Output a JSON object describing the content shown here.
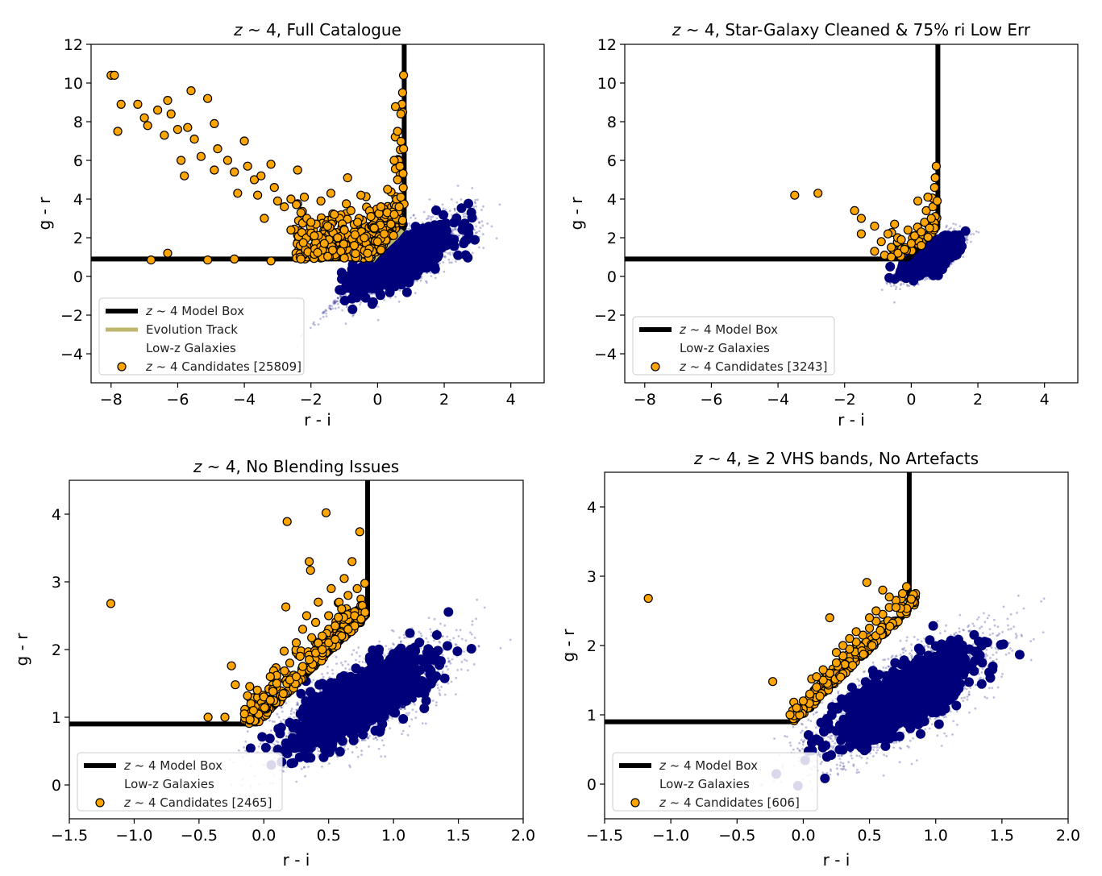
{
  "figure": {
    "description_panels": 4
  },
  "colors": {
    "model_box": "#000000",
    "evolution_track": "#bdb76b",
    "low_z": "#00007a",
    "candidate_fill": "#ffa500",
    "candidate_edge": "#000000",
    "axes_frame": "#000000",
    "legend_frame": "#cccccc"
  },
  "chart_data": [
    {
      "type": "scatter",
      "title": "z ~ 4, Full Catalogue",
      "title_z": "z",
      "title_rest": " ~ 4, Full Catalogue",
      "xlabel": "r - i",
      "ylabel": "g - r",
      "xlim": [
        -8.6,
        5.0
      ],
      "ylim": [
        -5.5,
        12.0
      ],
      "xticks": [
        -8,
        -6,
        -4,
        -2,
        0,
        2,
        4
      ],
      "xtick_labels": [
        "−8",
        "−6",
        "−4",
        "−2",
        "0",
        "2",
        "4"
      ],
      "yticks": [
        -4,
        -2,
        0,
        2,
        4,
        6,
        8,
        10,
        12
      ],
      "ytick_labels": [
        "−4",
        "−2",
        "0",
        "2",
        "4",
        "6",
        "8",
        "10",
        "12"
      ],
      "model_box": [
        [
          -8.6,
          0.9
        ],
        [
          -0.1,
          0.9
        ],
        [
          0.8,
          2.5
        ],
        [
          0.8,
          12.0
        ]
      ],
      "evolution_track": [
        [
          -0.15,
          0.8
        ],
        [
          0.05,
          1.2
        ],
        [
          0.3,
          1.6
        ],
        [
          0.55,
          2.0
        ],
        [
          0.75,
          2.4
        ]
      ],
      "low_z_cloud": {
        "center": [
          0.7,
          0.9
        ],
        "spread": [
          0.9,
          1.0
        ],
        "n": 2600
      },
      "candidates_sample": [
        [
          -8.0,
          10.4
        ],
        [
          -7.9,
          10.4
        ],
        [
          -7.8,
          7.5
        ],
        [
          -7.7,
          8.9
        ],
        [
          -7.2,
          8.9
        ],
        [
          -7.0,
          8.2
        ],
        [
          -6.9,
          7.8
        ],
        [
          -6.6,
          8.6
        ],
        [
          -6.4,
          7.3
        ],
        [
          -6.3,
          9.1
        ],
        [
          -6.2,
          8.4
        ],
        [
          -6.0,
          7.6
        ],
        [
          -5.9,
          6.0
        ],
        [
          -5.8,
          5.2
        ],
        [
          -5.7,
          7.7
        ],
        [
          -5.6,
          9.6
        ],
        [
          -5.5,
          7.1
        ],
        [
          -5.3,
          6.2
        ],
        [
          -5.1,
          9.2
        ],
        [
          -4.9,
          7.9
        ],
        [
          -4.9,
          5.5
        ],
        [
          -4.8,
          6.6
        ],
        [
          -4.5,
          6.0
        ],
        [
          -4.3,
          5.4
        ],
        [
          -4.2,
          4.3
        ],
        [
          -4.0,
          7.0
        ],
        [
          -3.9,
          5.7
        ],
        [
          -3.7,
          5.0
        ],
        [
          -3.6,
          4.2
        ],
        [
          -3.5,
          5.2
        ],
        [
          -3.4,
          3.0
        ],
        [
          -3.2,
          5.8
        ],
        [
          -3.1,
          4.6
        ],
        [
          -3.0,
          3.9
        ],
        [
          -2.8,
          3.6
        ],
        [
          -2.6,
          4.0
        ],
        [
          -2.6,
          2.4
        ],
        [
          -2.4,
          5.5
        ],
        [
          -2.3,
          3.3
        ],
        [
          -2.2,
          4.1
        ],
        [
          -2.0,
          2.8
        ],
        [
          -1.9,
          2.1
        ],
        [
          -1.7,
          3.9
        ],
        [
          -1.6,
          1.7
        ],
        [
          -1.5,
          2.6
        ],
        [
          -1.4,
          4.3
        ],
        [
          -1.3,
          3.2
        ],
        [
          -1.2,
          2.0
        ],
        [
          -1.1,
          1.3
        ],
        [
          -1.0,
          2.4
        ],
        [
          -0.9,
          5.1
        ],
        [
          -0.8,
          3.4
        ],
        [
          -0.7,
          1.6
        ],
        [
          -0.6,
          2.8
        ],
        [
          -0.5,
          4.2
        ],
        [
          -0.4,
          2.0
        ],
        [
          -0.3,
          1.2
        ],
        [
          -0.2,
          3.1
        ],
        [
          -0.1,
          2.5
        ],
        [
          0.0,
          1.8
        ],
        [
          0.1,
          3.6
        ],
        [
          0.2,
          2.2
        ],
        [
          0.3,
          4.5
        ],
        [
          0.4,
          2.7
        ],
        [
          0.5,
          3.2
        ],
        [
          0.5,
          6.0
        ],
        [
          0.6,
          5.0
        ],
        [
          0.6,
          7.5
        ],
        [
          0.65,
          3.6
        ],
        [
          0.7,
          8.4
        ],
        [
          0.7,
          4.1
        ],
        [
          0.75,
          9.5
        ],
        [
          0.75,
          2.9
        ],
        [
          0.78,
          10.4
        ],
        [
          0.78,
          6.6
        ],
        [
          -6.3,
          1.2
        ],
        [
          -4.3,
          0.9
        ],
        [
          -3.2,
          0.8
        ],
        [
          -5.1,
          0.85
        ],
        [
          -6.8,
          0.85
        ],
        [
          -2.3,
          0.9
        ],
        [
          -1.0,
          0.95
        ]
      ],
      "legend": {
        "position": "lower-left",
        "entries": [
          {
            "kind": "line",
            "z": "z",
            "label": " ~ 4 Model Box"
          },
          {
            "kind": "track",
            "label": "Evolution Track"
          },
          {
            "kind": "dot",
            "label": "Low-z Galaxies"
          },
          {
            "kind": "candidate",
            "z": "z",
            "label": " ~ 4 Candidates [25809]"
          }
        ]
      }
    },
    {
      "type": "scatter",
      "title": "z ~ 4, Star-Galaxy Cleaned & 75% ri Low Err",
      "title_z": "z",
      "title_rest": " ~ 4, Star-Galaxy Cleaned & 75% ri Low Err",
      "xlabel": "r - i",
      "ylabel": "g - r",
      "xlim": [
        -8.6,
        5.0
      ],
      "ylim": [
        -5.5,
        12.0
      ],
      "xticks": [
        -8,
        -6,
        -4,
        -2,
        0,
        2,
        4
      ],
      "xtick_labels": [
        "−8",
        "−6",
        "−4",
        "−2",
        "0",
        "2",
        "4"
      ],
      "yticks": [
        -4,
        -2,
        0,
        2,
        4,
        6,
        8,
        10,
        12
      ],
      "ytick_labels": [
        "−4",
        "−2",
        "0",
        "2",
        "4",
        "6",
        "8",
        "10",
        "12"
      ],
      "model_box": [
        [
          -8.6,
          0.9
        ],
        [
          -0.1,
          0.9
        ],
        [
          0.8,
          2.5
        ],
        [
          0.8,
          12.0
        ]
      ],
      "low_z_cloud": {
        "center": [
          0.6,
          1.0
        ],
        "spread": [
          0.45,
          0.55
        ],
        "n": 2000
      },
      "candidates_sample": [
        [
          -3.5,
          4.2
        ],
        [
          -2.8,
          4.3
        ],
        [
          -1.7,
          3.4
        ],
        [
          -1.5,
          3.0
        ],
        [
          -1.5,
          2.2
        ],
        [
          -1.1,
          2.6
        ],
        [
          -1.1,
          1.3
        ],
        [
          -0.9,
          1.8
        ],
        [
          -0.7,
          2.2
        ],
        [
          -0.6,
          1.5
        ],
        [
          -0.5,
          2.7
        ],
        [
          -0.4,
          1.2
        ],
        [
          -0.3,
          1.9
        ],
        [
          -0.2,
          1.4
        ],
        [
          -0.1,
          2.4
        ],
        [
          0.0,
          1.7
        ],
        [
          0.1,
          2.1
        ],
        [
          0.2,
          3.9
        ],
        [
          0.3,
          2.3
        ],
        [
          0.4,
          2.8
        ],
        [
          0.45,
          3.4
        ],
        [
          0.5,
          4.1
        ],
        [
          0.55,
          2.5
        ],
        [
          0.6,
          3.0
        ],
        [
          0.65,
          3.6
        ],
        [
          0.7,
          4.6
        ],
        [
          0.72,
          5.1
        ],
        [
          0.75,
          5.7
        ],
        [
          0.78,
          3.9
        ],
        [
          0.3,
          1.6
        ],
        [
          -0.8,
          1.1
        ],
        [
          -0.6,
          1.0
        ]
      ],
      "legend": {
        "position": "lower-left",
        "entries": [
          {
            "kind": "line",
            "z": "z",
            "label": " ~ 4 Model Box"
          },
          {
            "kind": "dot",
            "label": "Low-z Galaxies"
          },
          {
            "kind": "candidate",
            "z": "z",
            "label": " ~ 4 Candidates [3243]"
          }
        ]
      }
    },
    {
      "type": "scatter",
      "title": "z ~ 4, No Blending Issues",
      "title_z": "z",
      "title_rest": " ~ 4, No Blending Issues",
      "xlabel": "r - i",
      "ylabel": "g - r",
      "xlim": [
        -1.5,
        2.0
      ],
      "ylim": [
        -0.5,
        4.5
      ],
      "xticks": [
        -1.5,
        -1.0,
        -0.5,
        0.0,
        0.5,
        1.0,
        1.5,
        2.0
      ],
      "xtick_labels": [
        "−1.5",
        "−1.0",
        "−0.5",
        "0.0",
        "0.5",
        "1.0",
        "1.5",
        "2.0"
      ],
      "yticks": [
        0,
        1,
        2,
        3,
        4
      ],
      "ytick_labels": [
        "0",
        "1",
        "2",
        "3",
        "4"
      ],
      "model_box": [
        [
          -1.5,
          0.9
        ],
        [
          -0.05,
          0.9
        ],
        [
          0.8,
          2.5
        ],
        [
          0.8,
          4.5
        ]
      ],
      "low_z_cloud": {
        "center": [
          0.75,
          1.25
        ],
        "spread": [
          0.32,
          0.42
        ],
        "n": 2800
      },
      "candidates_sample": [
        [
          -1.18,
          2.68
        ],
        [
          -0.43,
          1.0
        ],
        [
          -0.3,
          1.0
        ],
        [
          -0.25,
          1.76
        ],
        [
          -0.22,
          1.48
        ],
        [
          -0.15,
          1.05
        ],
        [
          -0.1,
          1.2
        ],
        [
          -0.05,
          1.4
        ],
        [
          0.0,
          1.3
        ],
        [
          0.05,
          1.6
        ],
        [
          0.1,
          1.5
        ],
        [
          0.17,
          2.63
        ],
        [
          0.18,
          3.89
        ],
        [
          0.2,
          1.8
        ],
        [
          0.25,
          2.1
        ],
        [
          0.28,
          1.9
        ],
        [
          0.3,
          2.3
        ],
        [
          0.33,
          2.5
        ],
        [
          0.35,
          3.3
        ],
        [
          0.36,
          3.17
        ],
        [
          0.4,
          2.4
        ],
        [
          0.42,
          2.7
        ],
        [
          0.45,
          2.2
        ],
        [
          0.48,
          4.02
        ],
        [
          0.5,
          2.5
        ],
        [
          0.52,
          2.9
        ],
        [
          0.55,
          2.35
        ],
        [
          0.58,
          2.7
        ],
        [
          0.6,
          2.6
        ],
        [
          0.62,
          3.05
        ],
        [
          0.65,
          2.8
        ],
        [
          0.68,
          3.3
        ],
        [
          0.7,
          2.5
        ],
        [
          0.72,
          2.9
        ],
        [
          0.74,
          3.74
        ],
        [
          0.76,
          2.65
        ],
        [
          0.78,
          2.55
        ],
        [
          0.2,
          1.55
        ],
        [
          0.15,
          1.35
        ],
        [
          0.3,
          1.75
        ],
        [
          0.4,
          1.95
        ],
        [
          0.5,
          2.1
        ],
        [
          0.6,
          2.2
        ],
        [
          0.7,
          2.35
        ],
        [
          -0.08,
          1.1
        ],
        [
          0.05,
          1.25
        ],
        [
          0.25,
          1.6
        ],
        [
          0.35,
          1.85
        ],
        [
          0.45,
          2.0
        ],
        [
          0.55,
          2.15
        ],
        [
          0.65,
          2.3
        ],
        [
          0.75,
          2.45
        ]
      ],
      "legend": {
        "position": "lower-left",
        "entries": [
          {
            "kind": "line",
            "z": "z",
            "label": " ~ 4 Model Box"
          },
          {
            "kind": "dot",
            "label": "Low-z Galaxies"
          },
          {
            "kind": "candidate",
            "z": "z",
            "label": " ~ 4 Candidates [2465]"
          }
        ]
      }
    },
    {
      "type": "scatter",
      "title": "z ~ 4, ≥ 2 VHS bands, No Artefacts",
      "title_z": "z",
      "title_rest": " ~ 4,  ≥ 2 VHS bands, No Artefacts",
      "xlabel": "r - i",
      "ylabel": "g - r",
      "xlim": [
        -1.5,
        2.0
      ],
      "ylim": [
        -0.5,
        4.5
      ],
      "xticks": [
        -1.5,
        -1.0,
        -0.5,
        0.0,
        0.5,
        1.0,
        1.5,
        2.0
      ],
      "xtick_labels": [
        "−1.5",
        "−1.0",
        "−0.5",
        "0.0",
        "0.5",
        "1.0",
        "1.5",
        "2.0"
      ],
      "yticks": [
        0,
        1,
        2,
        3,
        4
      ],
      "ytick_labels": [
        "0",
        "1",
        "2",
        "3",
        "4"
      ],
      "model_box": [
        [
          -1.5,
          0.9
        ],
        [
          -0.1,
          0.9
        ],
        [
          0.8,
          2.5
        ],
        [
          0.8,
          4.5
        ]
      ],
      "low_z_cloud": {
        "center": [
          0.75,
          1.25
        ],
        "spread": [
          0.32,
          0.42
        ],
        "n": 2800
      },
      "candidates_sample": [
        [
          -1.17,
          2.68
        ],
        [
          -0.23,
          1.48
        ],
        [
          0.2,
          2.4
        ],
        [
          -0.1,
          1.0
        ],
        [
          -0.05,
          1.1
        ],
        [
          0.0,
          1.2
        ],
        [
          0.05,
          1.3
        ],
        [
          0.1,
          1.4
        ],
        [
          0.15,
          1.5
        ],
        [
          0.2,
          1.6
        ],
        [
          0.25,
          1.75
        ],
        [
          0.3,
          1.85
        ],
        [
          0.35,
          1.95
        ],
        [
          0.4,
          2.05
        ],
        [
          0.45,
          2.15
        ],
        [
          0.5,
          2.25
        ],
        [
          0.55,
          2.35
        ],
        [
          0.6,
          2.45
        ],
        [
          0.65,
          2.55
        ],
        [
          0.7,
          2.65
        ],
        [
          0.75,
          2.75
        ],
        [
          0.78,
          2.85
        ],
        [
          0.48,
          2.91
        ],
        [
          0.6,
          2.8
        ],
        [
          0.7,
          2.55
        ],
        [
          0.3,
          2.0
        ],
        [
          0.4,
          2.2
        ],
        [
          0.55,
          2.5
        ],
        [
          0.65,
          2.7
        ],
        [
          0.25,
          1.9
        ],
        [
          0.35,
          2.1
        ],
        [
          0.5,
          2.4
        ],
        [
          0.15,
          1.65
        ],
        [
          0.1,
          1.55
        ]
      ],
      "legend": {
        "position": "lower-left",
        "entries": [
          {
            "kind": "line",
            "z": "z",
            "label": " ~ 4 Model Box"
          },
          {
            "kind": "dot",
            "label": "Low-z Galaxies"
          },
          {
            "kind": "candidate",
            "z": "z",
            "label": " ~ 4 Candidates [606]"
          }
        ]
      }
    }
  ]
}
